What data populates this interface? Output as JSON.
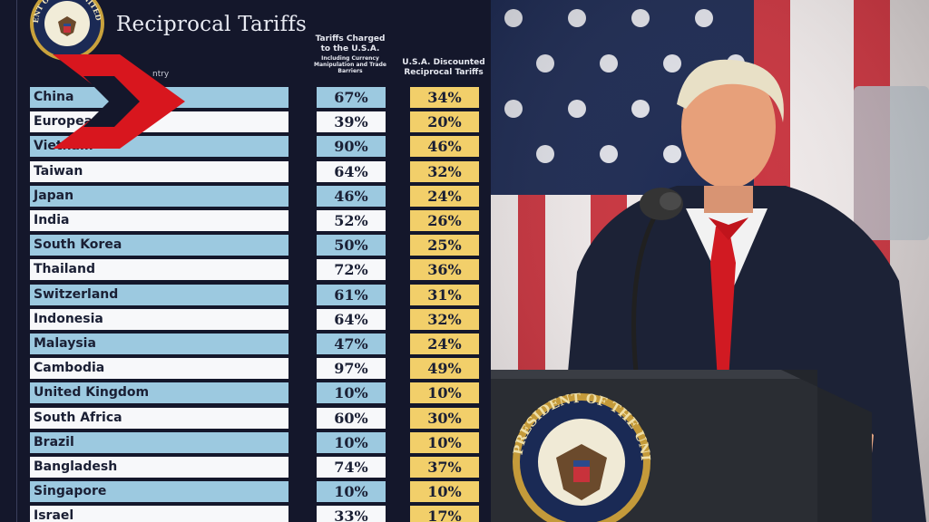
{
  "table": {
    "title": "Reciprocal Tariffs",
    "col_country_partial": "ntry",
    "col_charged_main": "Tariffs Charged to the U.S.A.",
    "col_charged_sub": "Including Currency Manipulation and Trade Barriers",
    "col_discounted": "U.S.A. Discounted Reciprocal Tariffs",
    "rows": [
      {
        "country": "China",
        "charged": "67%",
        "discounted": "34%"
      },
      {
        "country": "European Union",
        "charged": "39%",
        "discounted": "20%"
      },
      {
        "country": "Vietnam",
        "charged": "90%",
        "discounted": "46%"
      },
      {
        "country": "Taiwan",
        "charged": "64%",
        "discounted": "32%"
      },
      {
        "country": "Japan",
        "charged": "46%",
        "discounted": "24%"
      },
      {
        "country": "India",
        "charged": "52%",
        "discounted": "26%"
      },
      {
        "country": "South Korea",
        "charged": "50%",
        "discounted": "25%"
      },
      {
        "country": "Thailand",
        "charged": "72%",
        "discounted": "36%"
      },
      {
        "country": "Switzerland",
        "charged": "61%",
        "discounted": "31%"
      },
      {
        "country": "Indonesia",
        "charged": "64%",
        "discounted": "32%"
      },
      {
        "country": "Malaysia",
        "charged": "47%",
        "discounted": "24%"
      },
      {
        "country": "Cambodia",
        "charged": "97%",
        "discounted": "49%"
      },
      {
        "country": "United Kingdom",
        "charged": "10%",
        "discounted": "10%"
      },
      {
        "country": "South Africa",
        "charged": "60%",
        "discounted": "30%"
      },
      {
        "country": "Brazil",
        "charged": "10%",
        "discounted": "10%"
      },
      {
        "country": "Bangladesh",
        "charged": "74%",
        "discounted": "37%"
      },
      {
        "country": "Singapore",
        "charged": "10%",
        "discounted": "10%"
      },
      {
        "country": "Israel",
        "charged": "33%",
        "discounted": "17%"
      }
    ]
  },
  "seal": {
    "small_text": "PRESIDENT OF THE UNITED STATES",
    "podium_text": "THE PRESIDENT OF THE UNITED"
  },
  "colors": {
    "row_blue": "#9cc9e0",
    "row_white": "#f7f8fa",
    "discount_gold": "#f2cf6a",
    "chevron_red": "#d8161e",
    "background_navy": "#14172b"
  }
}
